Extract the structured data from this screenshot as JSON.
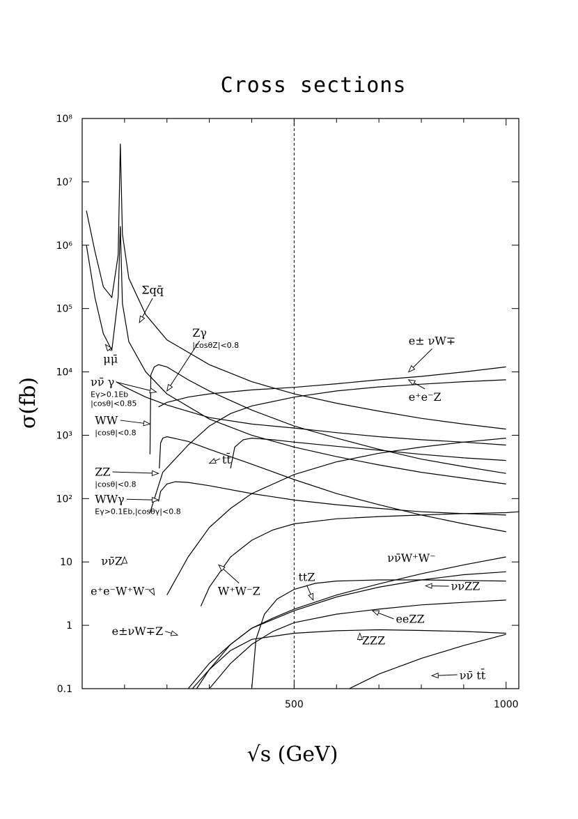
{
  "chart_data": {
    "type": "line",
    "title": "Cross sections",
    "xlabel": "√s (GeV)",
    "ylabel": "σ(fb)",
    "xlim": [
      0,
      1030
    ],
    "ylim": [
      0.1,
      100000000
    ],
    "y_scale": "log",
    "x_ticks": [
      500,
      1000
    ],
    "x_tick_labels": [
      "500",
      "1000"
    ],
    "y_ticks": [
      0.1,
      1,
      10,
      100,
      1000,
      10000,
      100000,
      1000000,
      10000000,
      100000000
    ],
    "y_tick_labels": [
      "0.1",
      "1",
      "10",
      "10²",
      "10³",
      "10⁴",
      "10⁵",
      "10⁶",
      "10⁷",
      "10⁸"
    ],
    "reference_line_x": 500,
    "grid": false,
    "series": [
      {
        "x": [
          10,
          30,
          50,
          70,
          85,
          90,
          95,
          110,
          150,
          200,
          300,
          400,
          500,
          600,
          700,
          800,
          900,
          1000
        ],
        "y": [
          3500000,
          800000,
          220000,
          150000,
          700000,
          40000000,
          1500000,
          300000,
          80000,
          32000,
          13000,
          7000,
          4500,
          3200,
          2400,
          1850,
          1500,
          1250
        ]
      },
      {
        "x": [
          10,
          30,
          50,
          70,
          85,
          90,
          95,
          110,
          150,
          200,
          300,
          400,
          500,
          600,
          700,
          800,
          900,
          1000
        ],
        "y": [
          1000000,
          150000,
          40000,
          22000,
          150000,
          2000000,
          120000,
          30000,
          10000,
          4500,
          1800,
          1000,
          650,
          460,
          340,
          260,
          210,
          170
        ]
      },
      {
        "x": [
          160,
          162,
          170,
          180,
          200,
          250,
          300,
          400,
          500,
          600,
          700,
          800,
          900,
          1000
        ],
        "y": [
          500,
          9000,
          12000,
          13000,
          12000,
          7500,
          5000,
          2500,
          1400,
          900,
          600,
          420,
          320,
          250
        ]
      },
      {
        "x": [
          80,
          100,
          150,
          200,
          300,
          400,
          500,
          600,
          700,
          800,
          900,
          1000
        ],
        "y": [
          7000,
          5800,
          4000,
          3000,
          1900,
          1500,
          1300,
          1100,
          950,
          850,
          780,
          700
        ]
      },
      {
        "x": [
          182,
          185,
          190,
          200,
          250,
          300,
          400,
          500,
          600,
          700,
          800,
          900,
          1000
        ],
        "y": [
          300,
          750,
          900,
          950,
          800,
          600,
          350,
          200,
          120,
          80,
          55,
          40,
          30
        ]
      },
      {
        "x": [
          350,
          360,
          380,
          400,
          450,
          500,
          600,
          700,
          800,
          900,
          1000
        ],
        "y": [
          300,
          650,
          850,
          900,
          850,
          780,
          670,
          580,
          500,
          440,
          400
        ]
      },
      {
        "x": [
          160,
          190,
          250,
          300,
          350,
          400,
          500,
          600,
          700,
          800,
          900,
          1000
        ],
        "y": [
          60,
          260,
          700,
          1400,
          2200,
          2900,
          4000,
          5000,
          5800,
          6400,
          7000,
          7500
        ]
      },
      {
        "x": [
          180,
          200,
          250,
          300,
          400,
          500,
          600,
          700,
          800,
          900,
          1000
        ],
        "y": [
          2800,
          3300,
          4000,
          4500,
          5200,
          5700,
          6500,
          7500,
          8500,
          10000,
          12000
        ]
      },
      {
        "x": [
          180,
          185,
          200,
          220,
          250,
          300,
          400,
          500,
          600,
          700,
          800,
          900,
          1000
        ],
        "y": [
          90,
          130,
          170,
          185,
          180,
          160,
          120,
          95,
          80,
          70,
          62,
          58,
          55
        ]
      },
      {
        "x": [
          200,
          250,
          300,
          350,
          400,
          500,
          600,
          700,
          800,
          900,
          1000
        ],
        "y": [
          3,
          12,
          35,
          70,
          120,
          240,
          380,
          520,
          650,
          780,
          900
        ]
      },
      {
        "x": [
          280,
          300,
          350,
          400,
          450,
          500,
          600,
          700,
          800,
          900,
          1000,
          1030
        ],
        "y": [
          2,
          4,
          12,
          22,
          32,
          40,
          48,
          52,
          55,
          58,
          60,
          62
        ]
      },
      {
        "x": [
          260,
          300,
          350,
          400,
          500,
          600,
          700,
          800,
          900,
          1000
        ],
        "y": [
          0.1,
          0.2,
          0.4,
          0.6,
          0.75,
          0.82,
          0.85,
          0.83,
          0.8,
          0.75
        ]
      },
      {
        "x": [
          400,
          410,
          430,
          460,
          500,
          550,
          600,
          700,
          800,
          900,
          1000
        ],
        "y": [
          0.1,
          0.6,
          1.5,
          2.6,
          3.7,
          4.6,
          5.0,
          5.2,
          5.2,
          5.1,
          5.0
        ]
      },
      {
        "x": [
          300,
          350,
          400,
          450,
          500,
          600,
          700,
          800,
          900,
          1000
        ],
        "y": [
          0.1,
          0.25,
          0.5,
          0.8,
          1.1,
          1.5,
          1.8,
          2.1,
          2.3,
          2.5
        ]
      },
      {
        "x": [
          250,
          300,
          350,
          400,
          450,
          500,
          600,
          700,
          800,
          900,
          1000
        ],
        "y": [
          0.1,
          0.25,
          0.5,
          0.9,
          1.3,
          1.8,
          3.0,
          4.5,
          6.5,
          9.0,
          12
        ]
      },
      {
        "x": [
          270,
          300,
          350,
          400,
          500,
          600,
          700,
          800,
          900,
          1000
        ],
        "y": [
          0.1,
          0.2,
          0.5,
          0.9,
          1.7,
          2.8,
          4.0,
          5.2,
          6.3,
          7.0
        ]
      },
      {
        "x": [
          630,
          700,
          800,
          900,
          1000
        ],
        "y": [
          0.1,
          0.17,
          0.3,
          0.48,
          0.72
        ]
      }
    ],
    "annotations": [
      {
        "text": "Σqq̄",
        "x": 140,
        "y": 170000,
        "arrow_to": [
          135,
          60000
        ]
      },
      {
        "text": "μμ̄",
        "x": 50,
        "y": 14000,
        "arrow_to": [
          55,
          27000
        ]
      },
      {
        "text": "Zγ",
        "x": 260,
        "y": 36000,
        "sub": "|cosθZ|<0.8",
        "arrow_to": [
          200,
          5000
        ]
      },
      {
        "text": "νν̄ γ",
        "x": 20,
        "y": 6000,
        "sub": "Eγ>0.1Eb",
        "sub2": "|cosθ|<0.85",
        "arrow_to": [
          175,
          4800
        ]
      },
      {
        "text": "WW",
        "x": 30,
        "y": 1500,
        "sub": "|cosθ|<0.8",
        "arrow_to": [
          160,
          1500
        ]
      },
      {
        "text": "tt̄",
        "x": 330,
        "y": 360,
        "arrow_to": [
          300,
          360
        ]
      },
      {
        "text": "ZZ",
        "x": 30,
        "y": 230,
        "sub": "|cosθ|<0.8",
        "arrow_to": [
          180,
          250
        ]
      },
      {
        "text": "WWγ",
        "x": 30,
        "y": 85,
        "sub": "Eγ>0.1Eb,|cosθγ|<0.8",
        "arrow_to": [
          180,
          95
        ]
      },
      {
        "text": "νν̄Z",
        "x": 45,
        "y": 9,
        "arrow_to": [
          100,
          12
        ]
      },
      {
        "text": "e⁺e⁻W⁺W⁻",
        "x": 20,
        "y": 3,
        "arrow_to": [
          170,
          3
        ]
      },
      {
        "text": "W⁺W⁻Z",
        "x": 320,
        "y": 3,
        "arrow_to": [
          322,
          9
        ]
      },
      {
        "text": "ttZ",
        "x": 510,
        "y": 5,
        "arrow_to": [
          545,
          2.5
        ]
      },
      {
        "text": "e±νW∓Z",
        "x": 70,
        "y": 0.7,
        "arrow_to": [
          225,
          0.7
        ]
      },
      {
        "text": "ZZZ",
        "x": 660,
        "y": 0.5,
        "arrow_to": [
          655,
          0.75
        ]
      },
      {
        "text": "eeZZ",
        "x": 740,
        "y": 1.1,
        "arrow_to": [
          685,
          1.7
        ]
      },
      {
        "text": "ννZZ",
        "x": 870,
        "y": 3.6,
        "arrow_to": [
          810,
          4.2
        ]
      },
      {
        "text": "νν̄W⁺W⁻",
        "x": 720,
        "y": 10,
        "arrow_to": null
      },
      {
        "text": "νν̄ tt̄",
        "x": 890,
        "y": 0.14,
        "arrow_to": [
          825,
          0.16
        ]
      },
      {
        "text": "e± νW∓",
        "x": 770,
        "y": 27000,
        "arrow_to": [
          770,
          10000
        ]
      },
      {
        "text": "e⁺e⁻Z",
        "x": 770,
        "y": 3500,
        "arrow_to": [
          770,
          7500
        ]
      }
    ]
  }
}
